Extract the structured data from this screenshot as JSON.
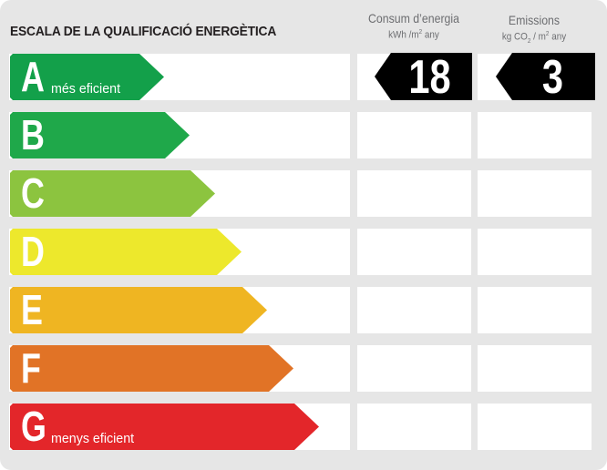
{
  "title": "ESCALA DE LA QUALIFICACIÓ ENERGÈTICA",
  "columns": {
    "consum": {
      "label": "Consum d’energia",
      "unit_prefix": "kWh /m",
      "unit_sup": "2",
      "unit_suffix": " any"
    },
    "emissions": {
      "label": "Emissions",
      "unit_prefix": "kg CO",
      "unit_sub": "2",
      "unit_mid": " / m",
      "unit_sup": "2",
      "unit_suffix": " any"
    }
  },
  "ratings": [
    {
      "letter": "A",
      "label": "més eficient",
      "color": "#13a04a"
    },
    {
      "letter": "B",
      "label": "",
      "color": "#1fa84a"
    },
    {
      "letter": "C",
      "label": "",
      "color": "#8cc43f"
    },
    {
      "letter": "D",
      "label": "",
      "color": "#ede82c"
    },
    {
      "letter": "E",
      "label": "",
      "color": "#efb522"
    },
    {
      "letter": "F",
      "label": "",
      "color": "#e17326"
    },
    {
      "letter": "G",
      "label": "menys eficient",
      "color": "#e3262a"
    }
  ],
  "current": {
    "rating": "A",
    "consum_value": "18",
    "emissions_value": "3"
  }
}
